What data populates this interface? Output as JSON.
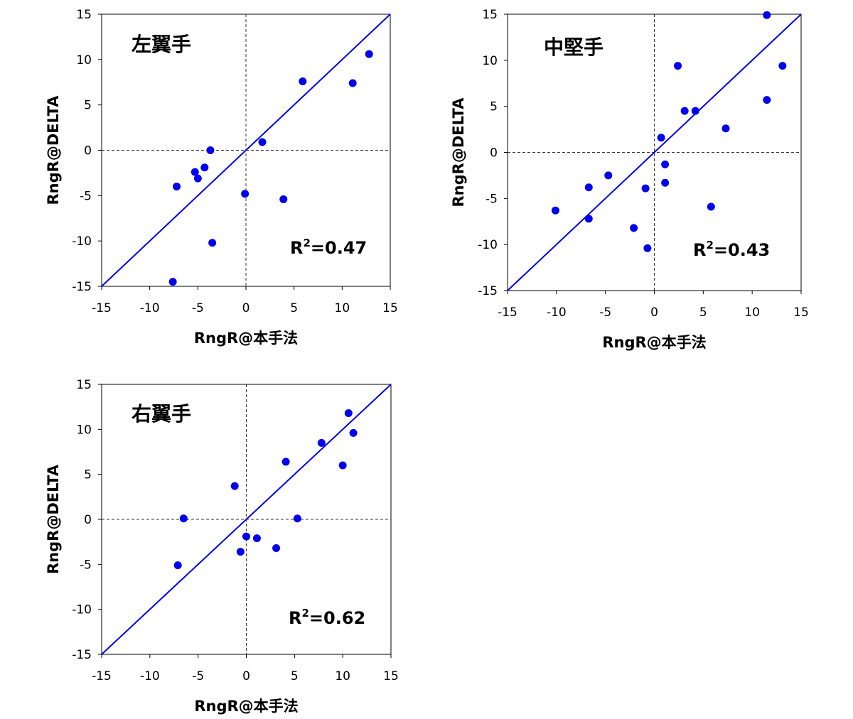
{
  "chart_data": [
    {
      "type": "scatter",
      "title": "左翼手",
      "xlabel": "RngR@本手法",
      "ylabel": "RngR@DELTA",
      "xlim": [
        -15,
        15
      ],
      "ylim": [
        -15,
        15
      ],
      "ticks": [
        -15,
        -10,
        -5,
        0,
        5,
        10,
        15
      ],
      "annotation": {
        "prefix": "R",
        "sup": "2",
        "text": "=0.47"
      },
      "reference_line": "y = x",
      "point_color": "#0000ee",
      "points": [
        [
          -7.2,
          -4.0
        ],
        [
          -5.3,
          -2.4
        ],
        [
          -5.0,
          -3.1
        ],
        [
          -4.3,
          -1.9
        ],
        [
          -3.7,
          0.0
        ],
        [
          -3.5,
          -10.2
        ],
        [
          -7.6,
          -14.5
        ],
        [
          -0.1,
          -4.8
        ],
        [
          1.7,
          0.9
        ],
        [
          3.9,
          -5.4
        ],
        [
          5.9,
          7.6
        ],
        [
          11.1,
          7.4
        ],
        [
          12.8,
          10.6
        ]
      ]
    },
    {
      "type": "scatter",
      "title": "中堅手",
      "xlabel": "RngR@本手法",
      "ylabel": "RngR@DELTA",
      "xlim": [
        -15,
        15
      ],
      "ylim": [
        -15,
        15
      ],
      "ticks": [
        -15,
        -10,
        -5,
        0,
        5,
        10,
        15
      ],
      "annotation": {
        "prefix": "R",
        "sup": "2",
        "text": "=0.43"
      },
      "reference_line": "y = x",
      "point_color": "#0000ee",
      "points": [
        [
          -10.1,
          -6.3
        ],
        [
          -6.7,
          -3.8
        ],
        [
          -6.7,
          -7.2
        ],
        [
          -4.7,
          -2.5
        ],
        [
          -2.1,
          -8.2
        ],
        [
          -0.9,
          -3.9
        ],
        [
          -0.7,
          -10.4
        ],
        [
          0.7,
          1.6
        ],
        [
          1.1,
          -1.3
        ],
        [
          1.1,
          -3.3
        ],
        [
          2.4,
          9.4
        ],
        [
          3.1,
          4.5
        ],
        [
          4.2,
          4.5
        ],
        [
          5.8,
          -5.9
        ],
        [
          7.3,
          2.6
        ],
        [
          11.5,
          5.7
        ],
        [
          11.5,
          14.9
        ],
        [
          13.1,
          9.4
        ]
      ]
    },
    {
      "type": "scatter",
      "title": "右翼手",
      "xlabel": "RngR@本手法",
      "ylabel": "RngR@DELTA",
      "xlim": [
        -15,
        15
      ],
      "ylim": [
        -15,
        15
      ],
      "ticks": [
        -15,
        -10,
        -5,
        0,
        5,
        10,
        15
      ],
      "annotation": {
        "prefix": "R",
        "sup": "2",
        "text": "=0.62"
      },
      "reference_line": "y = x",
      "point_color": "#0000ee",
      "points": [
        [
          -7.1,
          -5.1
        ],
        [
          -6.5,
          0.1
        ],
        [
          -1.2,
          3.7
        ],
        [
          -0.6,
          -3.6
        ],
        [
          0.0,
          -1.9
        ],
        [
          1.1,
          -2.1
        ],
        [
          3.1,
          -3.2
        ],
        [
          4.1,
          6.4
        ],
        [
          5.3,
          0.1
        ],
        [
          7.8,
          8.5
        ],
        [
          10.0,
          6.0
        ],
        [
          10.6,
          11.8
        ],
        [
          11.1,
          9.6
        ]
      ]
    }
  ]
}
